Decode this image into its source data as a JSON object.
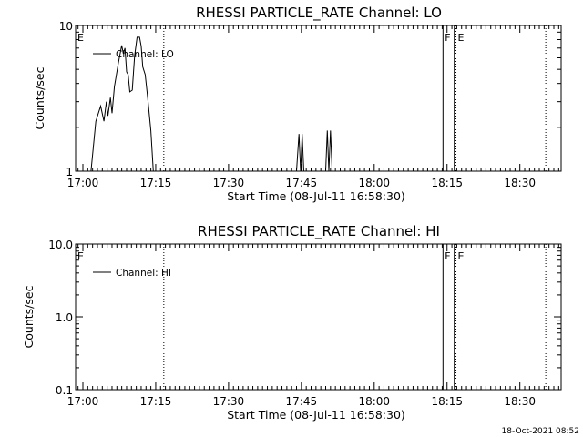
{
  "footer_timestamp": "18-Oct-2021 08:52",
  "chart_data": [
    {
      "type": "line",
      "title": "RHESSI PARTICLE_RATE Channel: LO",
      "xlabel": "Start Time (08-Jul-11 16:58:30)",
      "ylabel": "Counts/sec",
      "y_scale": "log",
      "xlim": [
        "16:58:30",
        "18:38:30"
      ],
      "ylim": [
        1,
        10
      ],
      "x_ticks": [
        "17:00",
        "17:15",
        "17:30",
        "17:45",
        "18:00",
        "18:15",
        "18:30"
      ],
      "y_ticks": [
        "1",
        "10"
      ],
      "legend_position": "top-left",
      "vlines": [
        {
          "time": "16:58:30",
          "label": "E",
          "style": "dotted"
        },
        {
          "time": "17:16:40",
          "label": "",
          "style": "dotted"
        },
        {
          "time": "18:14:10",
          "label": "F",
          "style": "solid"
        },
        {
          "time": "18:16:30",
          "label": "",
          "style": "solid"
        },
        {
          "time": "18:16:50",
          "label": "E",
          "style": "dotted"
        },
        {
          "time": "18:35:20",
          "label": "",
          "style": "dotted"
        }
      ],
      "series": [
        {
          "name": "Channel: LO",
          "times": [
            "17:01:40",
            "17:02:40",
            "17:03:40",
            "17:04:20",
            "17:04:50",
            "17:05:10",
            "17:05:40",
            "17:06:00",
            "17:06:30",
            "17:07:20",
            "17:08:00",
            "17:08:20",
            "17:08:40",
            "17:09:00",
            "17:09:20",
            "17:09:40",
            "17:10:10",
            "17:10:40",
            "17:11:10",
            "17:11:40",
            "17:12:00",
            "17:12:20",
            "17:12:50",
            "17:13:20",
            "17:14:00",
            "17:14:30",
            "17:44:00",
            "17:44:30",
            "17:44:50",
            "17:45:10",
            "17:45:30",
            "17:45:50",
            "17:50:00",
            "17:50:20",
            "17:50:40",
            "17:51:00",
            "17:51:20"
          ],
          "values": [
            1,
            2.2,
            2.8,
            2.2,
            3.0,
            2.4,
            3.2,
            2.5,
            3.8,
            5.6,
            7.3,
            6.4,
            7.0,
            4.8,
            4.6,
            3.5,
            3.6,
            6.2,
            8.3,
            8.3,
            7.2,
            5.2,
            4.6,
            3.2,
            1.9,
            1,
            1,
            1.8,
            1,
            1.8,
            1,
            1,
            1,
            1.9,
            1,
            1.9,
            1
          ]
        }
      ]
    },
    {
      "type": "line",
      "title": "RHESSI PARTICLE_RATE Channel: HI",
      "xlabel": "Start Time (08-Jul-11 16:58:30)",
      "ylabel": "Counts/sec",
      "y_scale": "log",
      "xlim": [
        "16:58:30",
        "18:38:30"
      ],
      "ylim": [
        0.1,
        10
      ],
      "x_ticks": [
        "17:00",
        "17:15",
        "17:30",
        "17:45",
        "18:00",
        "18:15",
        "18:30"
      ],
      "y_ticks": [
        "0.1",
        "1.0",
        "10.0"
      ],
      "legend_position": "top-left",
      "vlines": [
        {
          "time": "16:58:30",
          "label": "E",
          "style": "dotted"
        },
        {
          "time": "17:16:40",
          "label": "",
          "style": "dotted"
        },
        {
          "time": "18:14:10",
          "label": "F",
          "style": "solid"
        },
        {
          "time": "18:16:30",
          "label": "",
          "style": "solid"
        },
        {
          "time": "18:16:50",
          "label": "E",
          "style": "dotted"
        },
        {
          "time": "18:35:20",
          "label": "",
          "style": "dotted"
        }
      ],
      "series": [
        {
          "name": "Channel: HI",
          "times": [],
          "values": []
        }
      ]
    }
  ]
}
